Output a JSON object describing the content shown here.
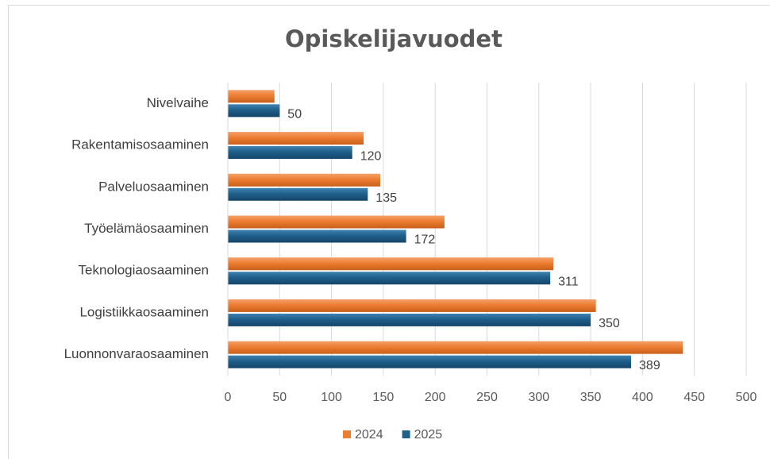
{
  "chart_data": {
    "type": "bar",
    "orientation": "horizontal",
    "title": "Opiskelijavuodet",
    "categories": [
      "Nivelvaihe",
      "Rakentamisosaaminen",
      "Palveluosaaminen",
      "Työelämäosaaminen",
      "Teknologiaosaaminen",
      "Logistiikkaosaaminen",
      "Luonnonvaraosaaminen"
    ],
    "series": [
      {
        "name": "2024",
        "color": "#ed7d31",
        "values": [
          45,
          131,
          147,
          209,
          314,
          355,
          439
        ]
      },
      {
        "name": "2025",
        "color": "#1f5f8b",
        "values": [
          50,
          120,
          135,
          172,
          311,
          350,
          389
        ],
        "data_labels": true
      }
    ],
    "xlim": [
      0,
      500
    ],
    "xticks": [
      0,
      50,
      100,
      150,
      200,
      250,
      300,
      350,
      400,
      450,
      500
    ],
    "grid": true,
    "legend": "bottom"
  }
}
